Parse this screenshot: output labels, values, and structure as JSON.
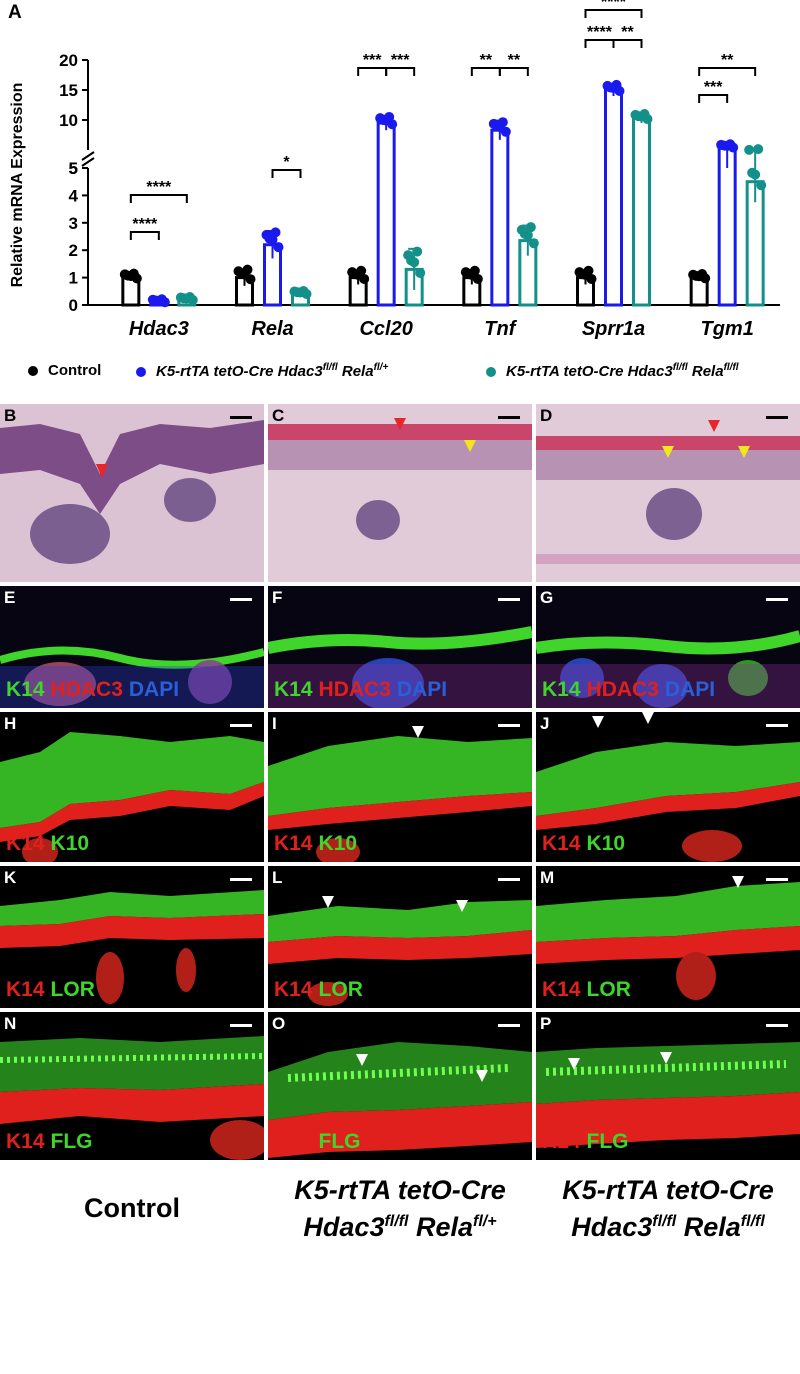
{
  "figure_letter_a": "A",
  "chart_data": {
    "type": "bar",
    "ylabel": "Relative mRNA Expression",
    "yaxis_upper_ticks": [
      "5",
      "10",
      "15",
      "20"
    ],
    "yaxis_lower_ticks": [
      "0",
      "1",
      "2",
      "3",
      "4",
      "5"
    ],
    "categories": [
      "Hdac3",
      "Rela",
      "Ccl20",
      "Tnf",
      "Sprr1a",
      "Tgm1"
    ],
    "series": [
      {
        "name": "Control",
        "color": "#000000",
        "values": [
          1.0,
          1.0,
          1.0,
          1.0,
          1.0,
          1.0
        ],
        "errors": [
          0.12,
          0.3,
          0.25,
          0.25,
          0.25,
          0.1
        ]
      },
      {
        "name": "K5-rtTA tetO-Cre Hdac3fl/fl Relafl/+",
        "color": "#1a1aee",
        "values": [
          0.12,
          2.2,
          9.5,
          8.3,
          15.0,
          5.5
        ],
        "errors": [
          0.05,
          0.5,
          1.2,
          1.6,
          1.0,
          0.5
        ]
      },
      {
        "name": "K5-rtTA tetO-Cre Hdac3fl/fl Relafl/fl",
        "color": "#14908a",
        "values": [
          0.2,
          0.42,
          1.3,
          2.35,
          10.3,
          4.5
        ],
        "errors": [
          0.05,
          0.05,
          0.75,
          0.55,
          0.8,
          0.75
        ]
      }
    ],
    "significance": [
      {
        "category": "Hdac3",
        "from": "Control",
        "to": "Hdac3fl/fl Relafl/+",
        "label": "****"
      },
      {
        "category": "Hdac3",
        "from": "Control",
        "to": "Hdac3fl/fl Relafl/fl",
        "label": "****"
      },
      {
        "category": "Rela",
        "from": "Hdac3fl/fl Relafl/+",
        "to": "Hdac3fl/fl Relafl/fl",
        "label": "*"
      },
      {
        "category": "Ccl20",
        "from": "Control",
        "to": "Hdac3fl/fl Relafl/+",
        "label": "***"
      },
      {
        "category": "Ccl20",
        "from": "Hdac3fl/fl Relafl/+",
        "to": "Hdac3fl/fl Relafl/fl",
        "label": "***"
      },
      {
        "category": "Tnf",
        "from": "Control",
        "to": "Hdac3fl/fl Relafl/+",
        "label": "**"
      },
      {
        "category": "Tnf",
        "from": "Hdac3fl/fl Relafl/+",
        "to": "Hdac3fl/fl Relafl/fl",
        "label": "**"
      },
      {
        "category": "Sprr1a",
        "from": "Control",
        "to": "Hdac3fl/fl Relafl/+",
        "label": "****"
      },
      {
        "category": "Sprr1a",
        "from": "Hdac3fl/fl Relafl/+",
        "to": "Hdac3fl/fl Relafl/fl",
        "label": "**"
      },
      {
        "category": "Sprr1a",
        "from": "Control",
        "to": "Hdac3fl/fl Relafl/fl",
        "label": "****"
      },
      {
        "category": "Tgm1",
        "from": "Control",
        "to": "Hdac3fl/fl Relafl/+",
        "label": "***"
      },
      {
        "category": "Tgm1",
        "from": "Control",
        "to": "Hdac3fl/fl Relafl/fl",
        "label": "**"
      }
    ]
  },
  "legend": {
    "control": "Control",
    "het_prefix": "K5-rtTA tetO-Cre Hdac3",
    "het_sup1": "fl/fl",
    "het_mid": " Rela",
    "het_sup2": "fl/+",
    "ko_prefix": "K5-rtTA tetO-Cre Hdac3",
    "ko_sup1": "fl/fl",
    "ko_mid": " Rela",
    "ko_sup2": "fl/fl"
  },
  "panels": {
    "B": "B",
    "C": "C",
    "D": "D",
    "E": "E",
    "F": "F",
    "G": "G",
    "H": "H",
    "I": "I",
    "J": "J",
    "K": "K",
    "L": "L",
    "M": "M",
    "N": "N",
    "O": "O",
    "P": "P"
  },
  "stains": {
    "k14": "K14",
    "hdac3": "HDAC3",
    "dapi": "DAPI",
    "k10": "K10",
    "lor": "LOR",
    "flg": "FLG"
  },
  "columns": {
    "control": "Control",
    "het_line1": "K5-rtTA tetO-Cre",
    "het_line2a": "Hdac3",
    "het_line2b": "fl/fl",
    "het_line2c": " Rela",
    "het_line2d": "fl/+",
    "ko_line1": "K5-rtTA tetO-Cre",
    "ko_line2a": "Hdac3",
    "ko_line2b": "fl/fl",
    "ko_line2c": " Rela",
    "ko_line2d": "fl/fl"
  },
  "colors": {
    "he_pink": "#d6a3c4",
    "he_purple": "#5b3e7a",
    "k14_red": "#e0201c",
    "marker_green": "#3fd52a",
    "dapi_blue": "#2a3fd0",
    "arrow_red": "#e8242c",
    "arrow_yellow": "#f2e61c"
  }
}
